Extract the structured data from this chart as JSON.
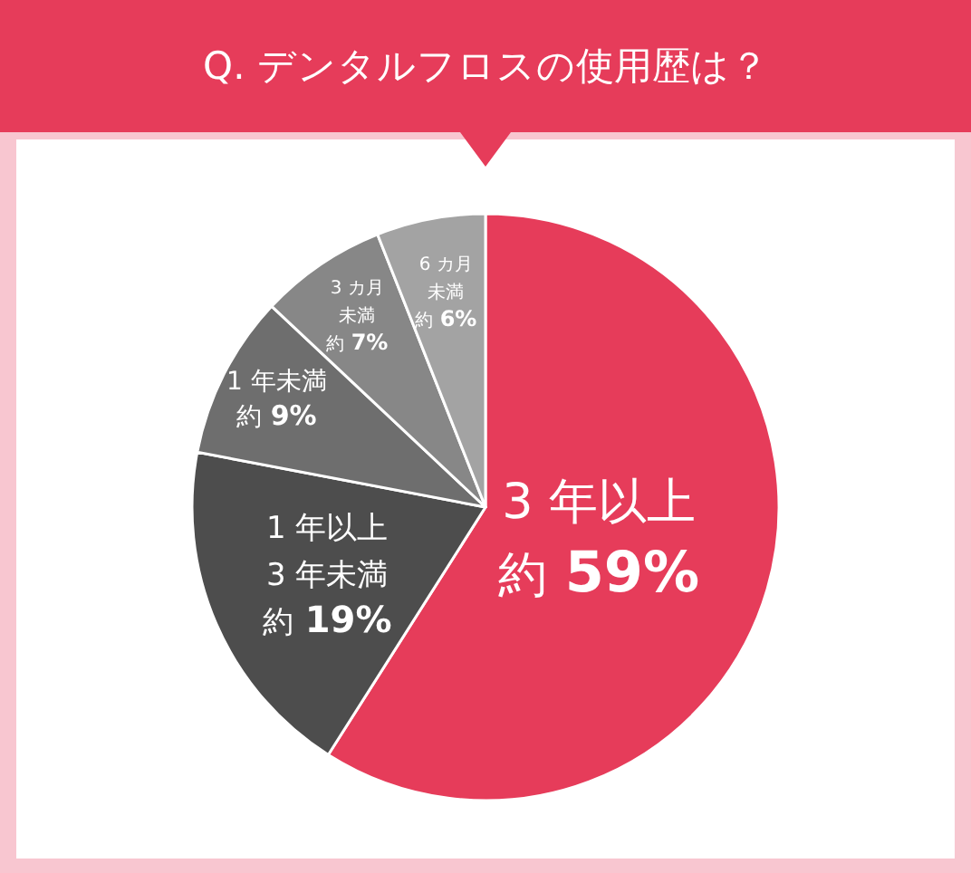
{
  "chart_data": {
    "type": "pie",
    "title": "Q. デンタルフロスの使用歴は？",
    "categories": [
      "3 年以上",
      "1 年以上\n3 年未満",
      "1 年未満",
      "3 カ月未満",
      "6 カ月未満"
    ],
    "values": [
      59,
      19,
      9,
      7,
      6
    ],
    "colors": [
      "#e63c5a",
      "#4d4d4d",
      "#6e6e6e",
      "#878787",
      "#a3a3a3"
    ],
    "value_labels": [
      "約 59%",
      "約 19%",
      "約 9%",
      "約 7%",
      "約 6%"
    ]
  }
}
